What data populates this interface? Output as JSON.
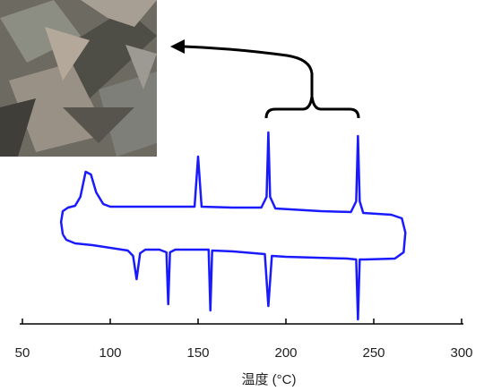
{
  "chart_data": {
    "type": "line",
    "xlabel": "温度 (°C)",
    "xlim": [
      50,
      300
    ],
    "xticks": [
      50,
      100,
      150,
      200,
      250,
      300
    ],
    "ylim": [
      0,
      230
    ],
    "x": [
      73,
      72,
      73,
      76,
      80,
      83,
      86,
      89,
      92,
      96,
      100,
      120,
      140,
      148,
      150,
      152,
      170,
      186,
      189,
      190,
      191,
      194,
      220,
      237,
      240,
      241,
      242,
      244,
      260,
      266,
      268,
      267,
      262,
      245,
      242,
      241,
      240,
      235,
      200,
      192,
      190,
      188,
      170,
      158,
      157,
      156,
      150,
      137,
      134,
      133,
      132,
      128,
      120,
      117,
      115,
      113,
      110,
      90,
      80,
      75,
      73
    ],
    "series": [
      {
        "color": "#1a1aff",
        "values": [
          100,
          114,
          126,
          130,
          132,
          142,
          170,
          167,
          147,
          134,
          131,
          131,
          131,
          131,
          187,
          131,
          130,
          130,
          142,
          214,
          142,
          129,
          126,
          125,
          137,
          210,
          137,
          124,
          122,
          118,
          102,
          80,
          73,
          72,
          72,
          5,
          72,
          73,
          75,
          76,
          20,
          78,
          81,
          82,
          15,
          83,
          83,
          83,
          80,
          22,
          80,
          83,
          83,
          79,
          50,
          76,
          82,
          88,
          90,
          94,
          100
        ]
      }
    ]
  }
}
